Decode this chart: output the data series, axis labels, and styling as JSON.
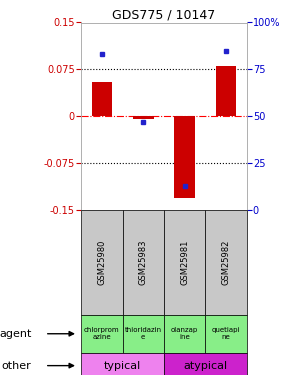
{
  "title": "GDS775 / 10147",
  "samples": [
    "GSM25980",
    "GSM25983",
    "GSM25981",
    "GSM25982"
  ],
  "log_ratios": [
    0.055,
    -0.005,
    -0.13,
    0.08
  ],
  "percentile_ranks": [
    83,
    47,
    13,
    85
  ],
  "agents": [
    "chlorprom\nazine",
    "thioridazin\ne",
    "olanzap\nine",
    "quetiapi\nne"
  ],
  "other_row": [
    [
      "typical",
      2
    ],
    [
      "atypical",
      2
    ]
  ],
  "ylim": [
    -0.15,
    0.15
  ],
  "yticks": [
    -0.15,
    -0.075,
    0,
    0.075,
    0.15
  ],
  "y2ticks": [
    0,
    25,
    50,
    75,
    100
  ],
  "hlines": [
    0.075,
    0,
    -0.075
  ],
  "bar_color": "#cc0000",
  "dot_color": "#2222cc",
  "bar_width": 0.5,
  "bg_color": "#ffffff",
  "label_color_left": "#cc0000",
  "label_color_right": "#0000cc",
  "typical_color": "#ee82ee",
  "atypical_color": "#cc22cc",
  "agent_bg": "#88ee88",
  "sample_bg": "#c8c8c8"
}
